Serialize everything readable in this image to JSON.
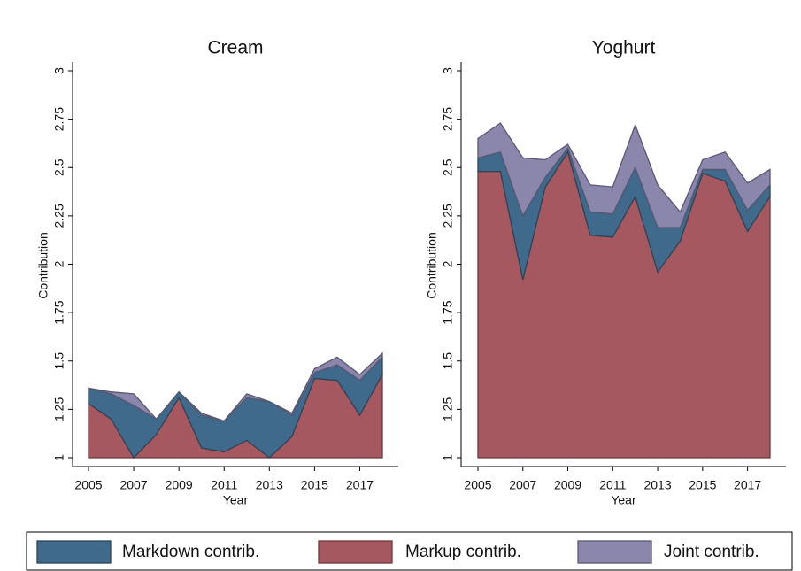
{
  "chart_data": [
    {
      "type": "area",
      "title": "Cream",
      "xlabel": "Year",
      "ylabel": "Contribution",
      "x": [
        2005,
        2006,
        2007,
        2008,
        2009,
        2010,
        2011,
        2012,
        2013,
        2014,
        2015,
        2016,
        2017,
        2018
      ],
      "xlim": [
        2005,
        2018
      ],
      "xticks": [
        2005,
        2007,
        2009,
        2011,
        2013,
        2015,
        2017
      ],
      "ylim": [
        1,
        3
      ],
      "yticks": [
        1,
        1.25,
        1.5,
        1.75,
        2,
        2.25,
        2.5,
        2.75,
        3
      ],
      "series": [
        {
          "name": "Markup contrib.",
          "color": "#a5585f",
          "values": [
            1.28,
            1.2,
            1.0,
            1.12,
            1.31,
            1.05,
            1.03,
            1.09,
            1.0,
            1.11,
            1.41,
            1.4,
            1.22,
            1.43
          ]
        },
        {
          "name": "Markdown contrib.",
          "color": "#406a8b",
          "values": [
            0.08,
            0.13,
            0.27,
            0.08,
            0.03,
            0.17,
            0.16,
            0.22,
            0.29,
            0.11,
            0.03,
            0.08,
            0.18,
            0.09
          ]
        },
        {
          "name": "Joint contrib.",
          "color": "#8a86ac",
          "values": [
            0,
            0.01,
            0.06,
            0,
            0,
            0.01,
            0,
            0.02,
            0,
            0.01,
            0.02,
            0.04,
            0.03,
            0.02
          ]
        }
      ]
    },
    {
      "type": "area",
      "title": "Yoghurt",
      "xlabel": "Year",
      "ylabel": "Contribution",
      "x": [
        2005,
        2006,
        2007,
        2008,
        2009,
        2010,
        2011,
        2012,
        2013,
        2014,
        2015,
        2016,
        2017,
        2018
      ],
      "xlim": [
        2005,
        2018
      ],
      "xticks": [
        2005,
        2007,
        2009,
        2011,
        2013,
        2015,
        2017
      ],
      "ylim": [
        1,
        3
      ],
      "yticks": [
        1,
        1.25,
        1.5,
        1.75,
        2,
        2.25,
        2.5,
        2.75,
        3
      ],
      "series": [
        {
          "name": "Markup contrib.",
          "color": "#a5585f",
          "values": [
            2.48,
            2.48,
            1.92,
            2.4,
            2.58,
            2.15,
            2.14,
            2.35,
            1.96,
            2.12,
            2.47,
            2.43,
            2.17,
            2.35
          ]
        },
        {
          "name": "Markdown contrib.",
          "color": "#406a8b",
          "values": [
            0.07,
            0.1,
            0.33,
            0.05,
            0.02,
            0.12,
            0.12,
            0.15,
            0.23,
            0.07,
            0.02,
            0.06,
            0.11,
            0.06
          ]
        },
        {
          "name": "Joint contrib.",
          "color": "#8a86ac",
          "values": [
            0.1,
            0.15,
            0.3,
            0.09,
            0.02,
            0.14,
            0.14,
            0.22,
            0.22,
            0.08,
            0.05,
            0.09,
            0.14,
            0.08
          ]
        }
      ]
    }
  ]
}
